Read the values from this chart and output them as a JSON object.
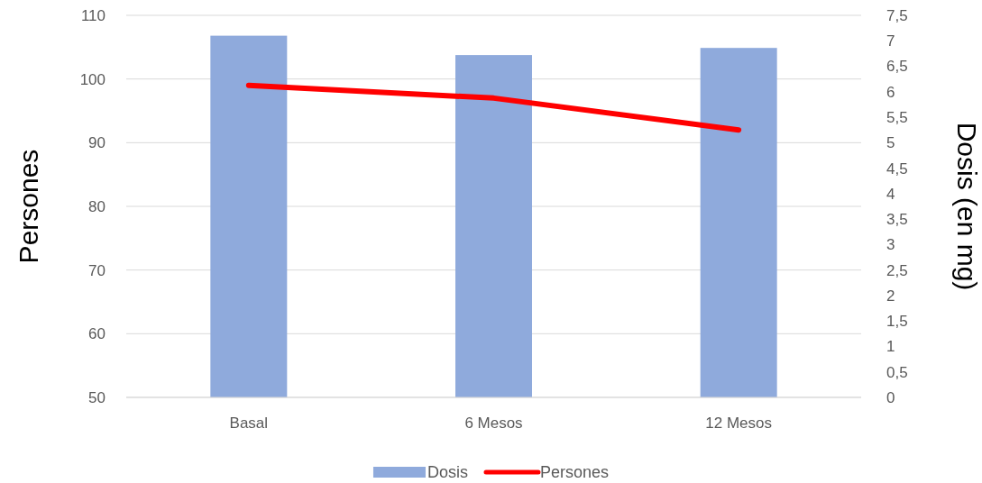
{
  "chart_data": {
    "type": "bar",
    "categories": [
      "Basal",
      "6 Mesos",
      "12 Mesos"
    ],
    "ylabel": "Persones",
    "y2label": "Dosis (en mg)",
    "series": [
      {
        "name": "Dosis",
        "axis": "y2",
        "color": "#8faadc",
        "values": [
          7.1,
          6.72,
          6.86
        ]
      },
      {
        "name": "Persones",
        "type": "line",
        "axis": "y",
        "color": "#ff0000",
        "values": [
          99,
          97,
          92
        ]
      }
    ],
    "ylim": [
      50,
      110
    ],
    "yticks": [
      50,
      60,
      70,
      80,
      90,
      100,
      110
    ],
    "y2lim": [
      0,
      7.5
    ],
    "y2ticks": [
      0,
      {
        "value": 0.5,
        "label": "0,5"
      },
      1,
      {
        "value": 1.5,
        "label": "1,5"
      },
      2,
      {
        "value": 2.5,
        "label": "2,5"
      },
      3,
      {
        "value": 3.5,
        "label": "3,5"
      },
      4,
      {
        "value": 4.5,
        "label": "4,5"
      },
      5,
      {
        "value": 5.5,
        "label": "5,5"
      },
      6,
      {
        "value": 6.5,
        "label": "6,5"
      },
      7,
      {
        "value": 7.5,
        "label": "7,5"
      }
    ],
    "grid": "y",
    "legend": "bottom",
    "marker": "none",
    "line_style": "solid"
  }
}
